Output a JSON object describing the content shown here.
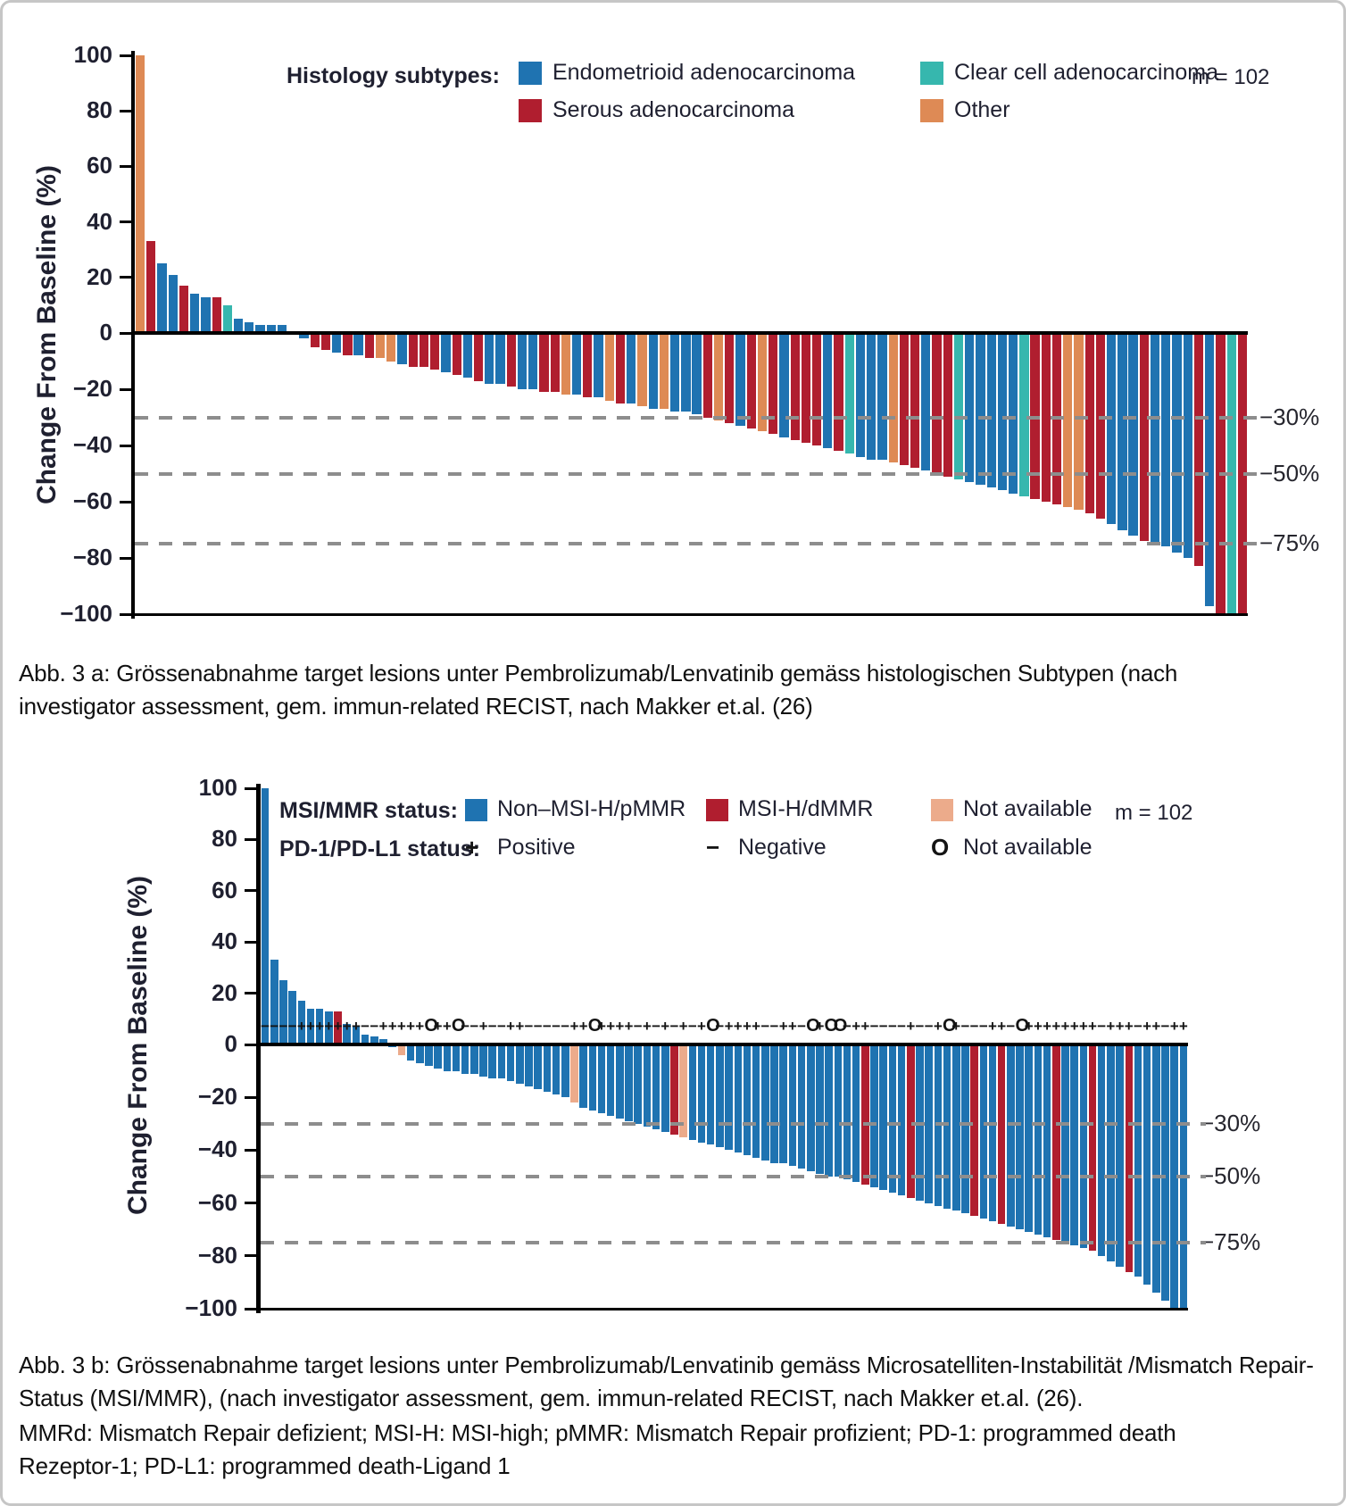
{
  "frame": {
    "background": "#ffffff",
    "border_color": "#c6c6c6"
  },
  "category_colors": {
    "endometrioid": "#1F73B1",
    "serous": "#B01E2F",
    "clear_cell": "#36B7AE",
    "other": "#DE8A55",
    "non_msi_h_pmmr": "#1F73B1",
    "msi_h_dmmr": "#B01E2F",
    "not_available": "#ECAB8B"
  },
  "chart_data": [
    {
      "id": "histology-waterfall",
      "type": "bar",
      "subtype": "waterfall",
      "n": 102,
      "n_label": "m = 102",
      "ylabel": "Change From Baseline (%)",
      "xlabel": "",
      "ylim": [
        -100,
        100
      ],
      "grid": false,
      "yticks": [
        {
          "v": 100,
          "label": "100"
        },
        {
          "v": 80,
          "label": "80"
        },
        {
          "v": 60,
          "label": "60"
        },
        {
          "v": 40,
          "label": "40"
        },
        {
          "v": 20,
          "label": "20"
        },
        {
          "v": 0,
          "label": "0"
        },
        {
          "v": -20,
          "label": "−20"
        },
        {
          "v": -40,
          "label": "−40"
        },
        {
          "v": -60,
          "label": "−60"
        },
        {
          "v": -80,
          "label": "−80"
        },
        {
          "v": -100,
          "label": "−100"
        }
      ],
      "reference_lines": [
        {
          "value": -30,
          "label": "−30%"
        },
        {
          "value": -50,
          "label": "−50%"
        },
        {
          "value": -75,
          "label": "−75%"
        }
      ],
      "legend_title": "Histology subtypes:",
      "legend": [
        {
          "label": "Endometrioid adenocarcinoma",
          "color": "endometrioid"
        },
        {
          "label": "Clear cell adenocarcinoma",
          "color": "clear_cell"
        },
        {
          "label": "Serous adenocarcinoma",
          "color": "serous"
        },
        {
          "label": "Other",
          "color": "other"
        }
      ],
      "category_map": {
        "E": "endometrioid",
        "S": "serous",
        "C": "clear_cell",
        "O": "other"
      },
      "categories": "OSEESEESCEEEEEEESSESESOOESSSESESEESEESSOESEOSEOEOEEESOSESOSESSSESCEEEOSSESSCEEEEECSSSOOSSEEESEEEESESCS",
      "values": [
        100,
        33,
        25,
        21,
        17,
        14,
        13,
        13,
        10,
        5,
        4,
        3,
        3,
        3,
        0,
        -2,
        -5,
        -6,
        -7,
        -8,
        -8,
        -9,
        -9,
        -10,
        -11,
        -12,
        -12,
        -13,
        -14,
        -15,
        -16,
        -17,
        -18,
        -18,
        -19,
        -20,
        -20,
        -21,
        -21,
        -22,
        -22,
        -23,
        -23,
        -24,
        -25,
        -25,
        -26,
        -27,
        -27,
        -28,
        -28,
        -29,
        -30,
        -31,
        -32,
        -33,
        -34,
        -35,
        -36,
        -37,
        -38,
        -39,
        -40,
        -41,
        -42,
        -43,
        -44,
        -45,
        -45,
        -46,
        -47,
        -48,
        -49,
        -50,
        -51,
        -52,
        -53,
        -54,
        -55,
        -56,
        -57,
        -58,
        -59,
        -60,
        -61,
        -62,
        -63,
        -64,
        -66,
        -68,
        -70,
        -72,
        -74,
        -75,
        -76,
        -78,
        -80,
        -83,
        -97,
        -100,
        -100,
        -100
      ]
    },
    {
      "id": "msi-mmr-waterfall",
      "type": "bar",
      "subtype": "waterfall",
      "n": 102,
      "n_label": "m = 102",
      "ylabel": "Change From Baseline (%)",
      "xlabel": "",
      "ylim": [
        -100,
        100
      ],
      "grid": false,
      "yticks": [
        {
          "v": 100,
          "label": "100"
        },
        {
          "v": 80,
          "label": "80"
        },
        {
          "v": 60,
          "label": "60"
        },
        {
          "v": 40,
          "label": "40"
        },
        {
          "v": 20,
          "label": "20"
        },
        {
          "v": 0,
          "label": "0"
        },
        {
          "v": -20,
          "label": "−20"
        },
        {
          "v": -40,
          "label": "−40"
        },
        {
          "v": -60,
          "label": "−60"
        },
        {
          "v": -80,
          "label": "−80"
        },
        {
          "v": -100,
          "label": "−100"
        }
      ],
      "reference_lines": [
        {
          "value": -30,
          "label": "−30%"
        },
        {
          "value": -50,
          "label": "−50%"
        },
        {
          "value": -75,
          "label": "−75%"
        }
      ],
      "legend_rows": [
        {
          "title": "MSI/MMR status:",
          "items": [
            {
              "swatch": "square",
              "color": "non_msi_h_pmmr",
              "label": "Non–MSI-H/pMMR"
            },
            {
              "swatch": "square",
              "color": "msi_h_dmmr",
              "label": "MSI-H/dMMR"
            },
            {
              "swatch": "square",
              "color": "not_available",
              "label": "Not available"
            }
          ]
        },
        {
          "title": "PD-1/PD-L1 status:",
          "items": [
            {
              "swatch": "plus",
              "label": "Positive"
            },
            {
              "swatch": "minus",
              "label": "Negative"
            },
            {
              "swatch": "circle",
              "label": "Not available"
            }
          ]
        }
      ],
      "category_map": {
        "N": "non_msi_h_pmmr",
        "M": "msi_h_dmmr",
        "X": "not_available"
      },
      "categories": "NNNNNNNNMNNNNNNXNNNNNNNNNNNNNNNNNNXNNNNNNNNNNMXNNNNNNNNNNNNNNNNNNNMNNNNMNNNNNNMNNMNNNNNMNNNMNNNMNNNNNN",
      "values": [
        100,
        33,
        25,
        21,
        17,
        14,
        14,
        13,
        13,
        8,
        7,
        4,
        3,
        2,
        -1,
        -4,
        -6,
        -7,
        -8,
        -9,
        -10,
        -10,
        -11,
        -11,
        -12,
        -13,
        -13,
        -14,
        -15,
        -16,
        -17,
        -18,
        -19,
        -20,
        -22,
        -24,
        -25,
        -26,
        -27,
        -28,
        -29,
        -30,
        -31,
        -32,
        -33,
        -34,
        -35,
        -36,
        -37,
        -38,
        -39,
        -40,
        -41,
        -42,
        -43,
        -44,
        -45,
        -45,
        -46,
        -47,
        -48,
        -49,
        -50,
        -50,
        -51,
        -52,
        -53,
        -54,
        -55,
        -56,
        -57,
        -58,
        -59,
        -60,
        -61,
        -62,
        -63,
        -64,
        -65,
        -66,
        -67,
        -68,
        -69,
        -70,
        -71,
        -72,
        -73,
        -74,
        -75,
        -76,
        -77,
        -78,
        -80,
        -82,
        -84,
        -86,
        -88,
        -91,
        -94,
        -97,
        -100,
        -100
      ],
      "symbol_line_value": 7,
      "pd_l1_symbols": "−−−−+++++++−−+++++O++O−−+−−++−−−−−++O++++−+−+−+−+O−++++−−++−O+OO−++−−−−+−−+O+−−−++−O++++++++−+++−++−++"
    }
  ],
  "captions": {
    "a": "Abb. 3 a: Grössenabnahme target lesions unter Pembrolizumab/Lenvatinib gemäss histologischen Subtypen (nach investigator assessment, gem. immun-related RECIST, nach Makker et.al. (26)",
    "b1": "Abb. 3 b: Grössenabnahme target lesions unter Pembrolizumab/Lenvatinib gemäss Microsatelliten-Instabilität /Mismatch Repair-Status (MSI/MMR),  (nach investigator assessment, gem. immun-related RECIST, nach Makker et.al. (26).",
    "b2": "MMRd: Mismatch Repair defizient; MSI-H: MSI-high; pMMR: Mismatch Repair profizient; PD-1: programmed death Rezeptor-1; PD-L1: programmed death-Ligand 1"
  }
}
